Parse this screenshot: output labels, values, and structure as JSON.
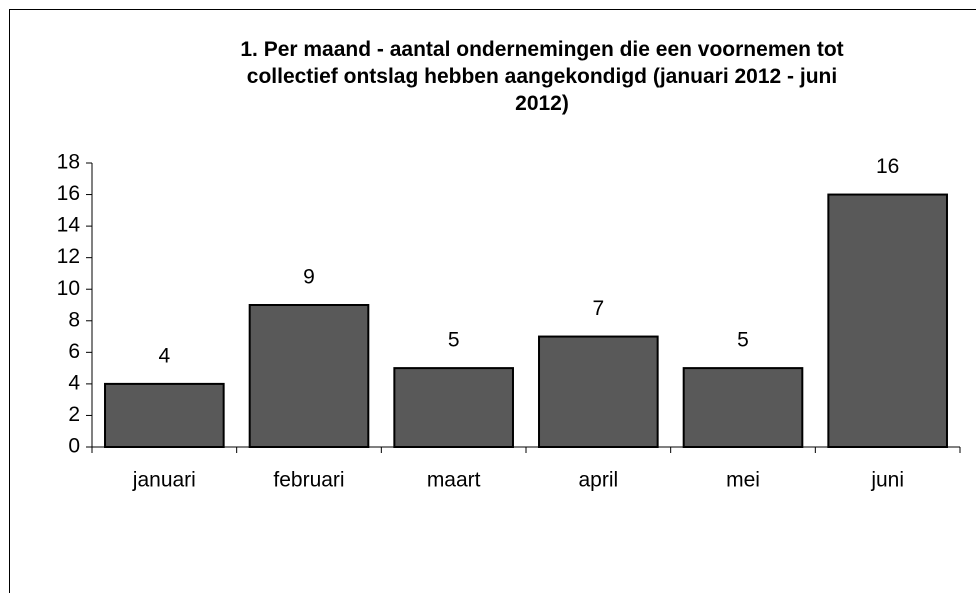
{
  "chart_data": {
    "type": "bar",
    "title": "1. Per maand - aantal ondernemingen die een voornemen tot collectief ontslag hebben aangekondigd (januari 2012 - juni 2012)",
    "categories": [
      "januari",
      "februari",
      "maart",
      "april",
      "mei",
      "juni"
    ],
    "values": [
      4,
      9,
      5,
      7,
      5,
      16
    ],
    "color": "#595959",
    "ylim": [
      0,
      18
    ],
    "yticks": [
      0,
      2,
      4,
      6,
      8,
      10,
      12,
      14,
      16,
      18
    ],
    "grid": false
  }
}
